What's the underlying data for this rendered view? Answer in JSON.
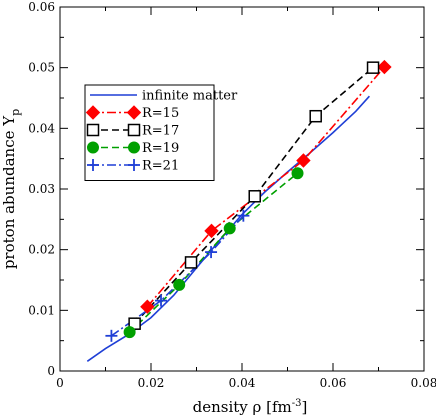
{
  "chart_data": {
    "type": "line",
    "xlabel": "density ρ",
    "xunit_main": "[fm",
    "xunit_exp": "-3",
    "xunit_end": "]",
    "ylabel_main": "proton abundance Y",
    "ylabel_sub": "p",
    "xlim": [
      0,
      0.08
    ],
    "ylim": [
      0,
      0.06
    ],
    "xticks": [
      0,
      0.02,
      0.04,
      0.06,
      0.08
    ],
    "xtick_labels": [
      "0",
      "0.02",
      "0.04",
      "0.06",
      "0.08"
    ],
    "yticks": [
      0,
      0.01,
      0.02,
      0.03,
      0.04,
      0.05,
      0.06
    ],
    "ytick_labels": [
      "0",
      "0.01",
      "0.02",
      "0.03",
      "0.04",
      "0.05",
      "0.06"
    ],
    "grid": false,
    "legend_position": "upper-left",
    "series": [
      {
        "name": "infinite matter",
        "color": "#1f3fd6",
        "line_style": "solid",
        "marker": "none",
        "x": [
          0.006,
          0.01,
          0.015,
          0.02,
          0.025,
          0.03,
          0.035,
          0.04,
          0.045,
          0.05,
          0.055,
          0.06,
          0.065,
          0.068
        ],
        "y": [
          0.0016,
          0.0037,
          0.006,
          0.0088,
          0.0125,
          0.017,
          0.0215,
          0.0258,
          0.0295,
          0.0328,
          0.036,
          0.0393,
          0.0428,
          0.0453
        ]
      },
      {
        "name": "R=15",
        "color": "#ff0000",
        "line_style": "dashdot",
        "marker": "diamond",
        "x": [
          0.0192,
          0.0333,
          0.0535,
          0.0713
        ],
        "y": [
          0.0106,
          0.0231,
          0.0347,
          0.0501
        ]
      },
      {
        "name": "R=17",
        "color": "#000000",
        "line_style": "dashed",
        "marker": "open-square",
        "x": [
          0.0164,
          0.0288,
          0.0428,
          0.0562,
          0.0688
        ],
        "y": [
          0.0078,
          0.0179,
          0.0288,
          0.042,
          0.05
        ]
      },
      {
        "name": "R=19",
        "color": "#00a000",
        "line_style": "dashed",
        "marker": "circle",
        "x": [
          0.0153,
          0.0262,
          0.0373,
          0.0522
        ],
        "y": [
          0.0064,
          0.0142,
          0.0235,
          0.0326
        ]
      },
      {
        "name": "R=21",
        "color": "#1f3fd6",
        "line_style": "dashdot",
        "marker": "plus",
        "x": [
          0.0113,
          0.0222,
          0.0332,
          0.0403
        ],
        "y": [
          0.0058,
          0.0116,
          0.0196,
          0.0256
        ]
      }
    ]
  }
}
